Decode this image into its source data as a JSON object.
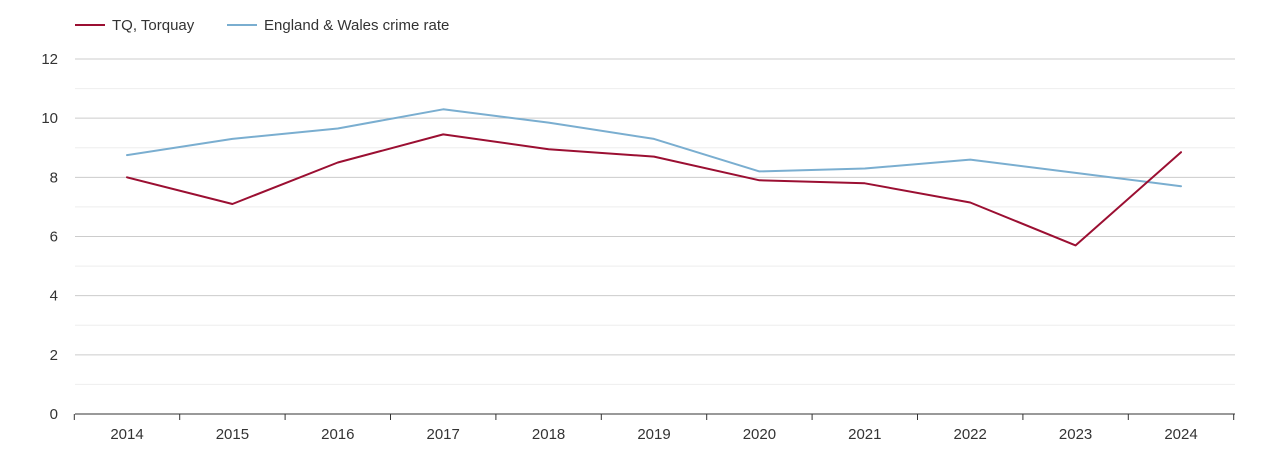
{
  "chart_data": {
    "type": "line",
    "title": "",
    "xlabel": "",
    "ylabel": "",
    "categories": [
      "2014",
      "2015",
      "2016",
      "2017",
      "2018",
      "2019",
      "2020",
      "2021",
      "2022",
      "2023",
      "2024"
    ],
    "series": [
      {
        "name": "TQ, Torquay",
        "color": "#9b0f32",
        "values": [
          8.0,
          7.1,
          8.5,
          9.45,
          8.95,
          8.7,
          7.9,
          7.8,
          7.15,
          5.7,
          8.85
        ]
      },
      {
        "name": "England & Wales crime rate",
        "color": "#7aaed0",
        "values": [
          8.75,
          9.3,
          9.65,
          10.3,
          9.85,
          9.3,
          8.2,
          8.3,
          8.6,
          8.15,
          7.7
        ]
      }
    ],
    "ylim": [
      0,
      12
    ],
    "yticks": [
      "0",
      "2",
      "4",
      "6",
      "8",
      "10",
      "12"
    ],
    "grid": true,
    "legend_position": "top-left"
  }
}
